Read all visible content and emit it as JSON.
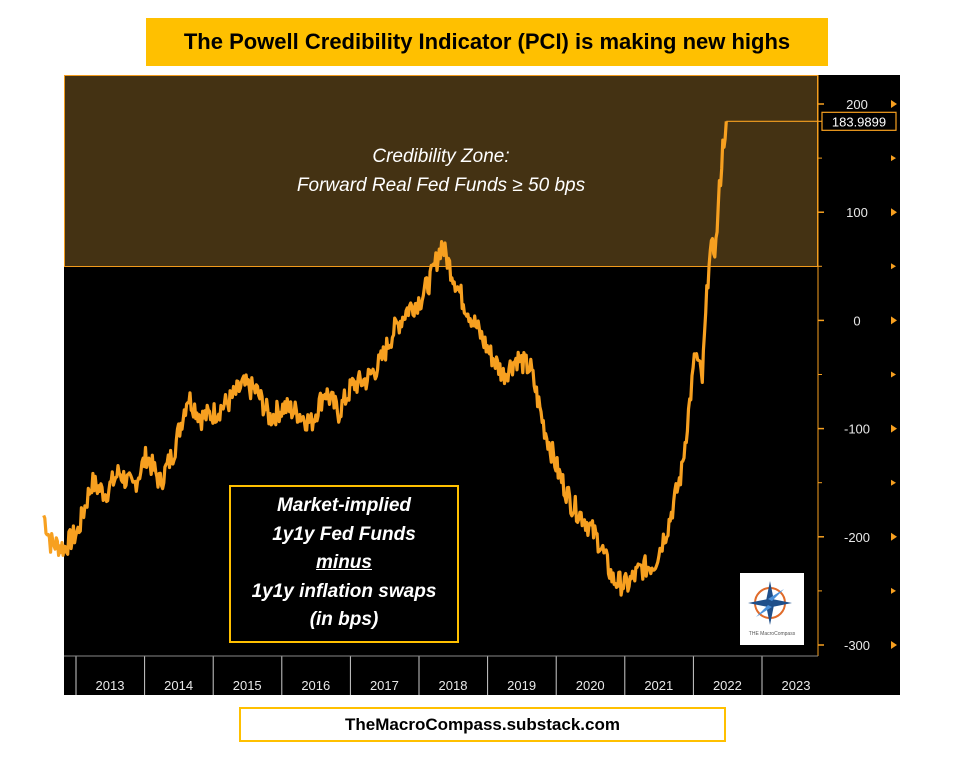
{
  "title": "The Powell Credibility Indicator (PCI) is making new highs",
  "zone": {
    "line1": "Credibility Zone:",
    "line2": "Forward Real Fed Funds ≥ 50 bps"
  },
  "callout": {
    "line1": "Market-implied",
    "line2": "1y1y Fed Funds",
    "line3": "minus",
    "line4": "1y1y inflation swaps",
    "line5": "(in bps)"
  },
  "footer": "TheMacroCompass.substack.com",
  "logo": {
    "text": "THE MacroCompass"
  },
  "colors": {
    "series": "#f7a020",
    "zone_fill": "#443213",
    "banner": "#ffc000",
    "background": "#000000"
  },
  "chart_data": {
    "type": "line",
    "ylim": [
      -300,
      200
    ],
    "y_ticks": [
      "200",
      "100",
      "0",
      "-100",
      "-200",
      "-300"
    ],
    "x_ticks": [
      "2013",
      "2014",
      "2015",
      "2016",
      "2017",
      "2018",
      "2019",
      "2020",
      "2021",
      "2022",
      "2023"
    ],
    "last_value_label": "183.9899",
    "shaded_zone": {
      "from": 50,
      "to": 200
    },
    "series": [
      {
        "x": [
          2012.5,
          2012.6,
          2012.8,
          2013.0,
          2013.2,
          2013.4,
          2013.6,
          2013.8,
          2014.0,
          2014.2,
          2014.4,
          2014.6,
          2014.8,
          2015.0,
          2015.2,
          2015.4,
          2015.6,
          2015.8,
          2016.0,
          2016.2,
          2016.4,
          2016.6,
          2016.8,
          2017.0,
          2017.2,
          2017.4,
          2017.6,
          2017.8,
          2018.0,
          2018.15,
          2018.3,
          2018.45,
          2018.6,
          2018.8,
          2019.0,
          2019.2,
          2019.4,
          2019.6,
          2019.8,
          2020.0,
          2020.2,
          2020.4,
          2020.6,
          2020.8,
          2021.0,
          2021.2,
          2021.4,
          2021.6,
          2021.8,
          2022.0,
          2022.1,
          2022.2,
          2022.3,
          2022.35,
          2022.4,
          2022.45
        ],
        "values": [
          -180,
          -205,
          -210,
          -195,
          -150,
          -160,
          -140,
          -155,
          -125,
          -150,
          -120,
          -70,
          -90,
          -85,
          -75,
          -60,
          -65,
          -90,
          -80,
          -85,
          -95,
          -65,
          -85,
          -60,
          -55,
          -40,
          -10,
          10,
          20,
          40,
          70,
          45,
          20,
          -5,
          -30,
          -50,
          -35,
          -45,
          -100,
          -140,
          -170,
          -185,
          -205,
          -240,
          -245,
          -230,
          -225,
          -190,
          -140,
          -30,
          -55,
          60,
          70,
          120,
          160,
          184
        ]
      }
    ]
  }
}
